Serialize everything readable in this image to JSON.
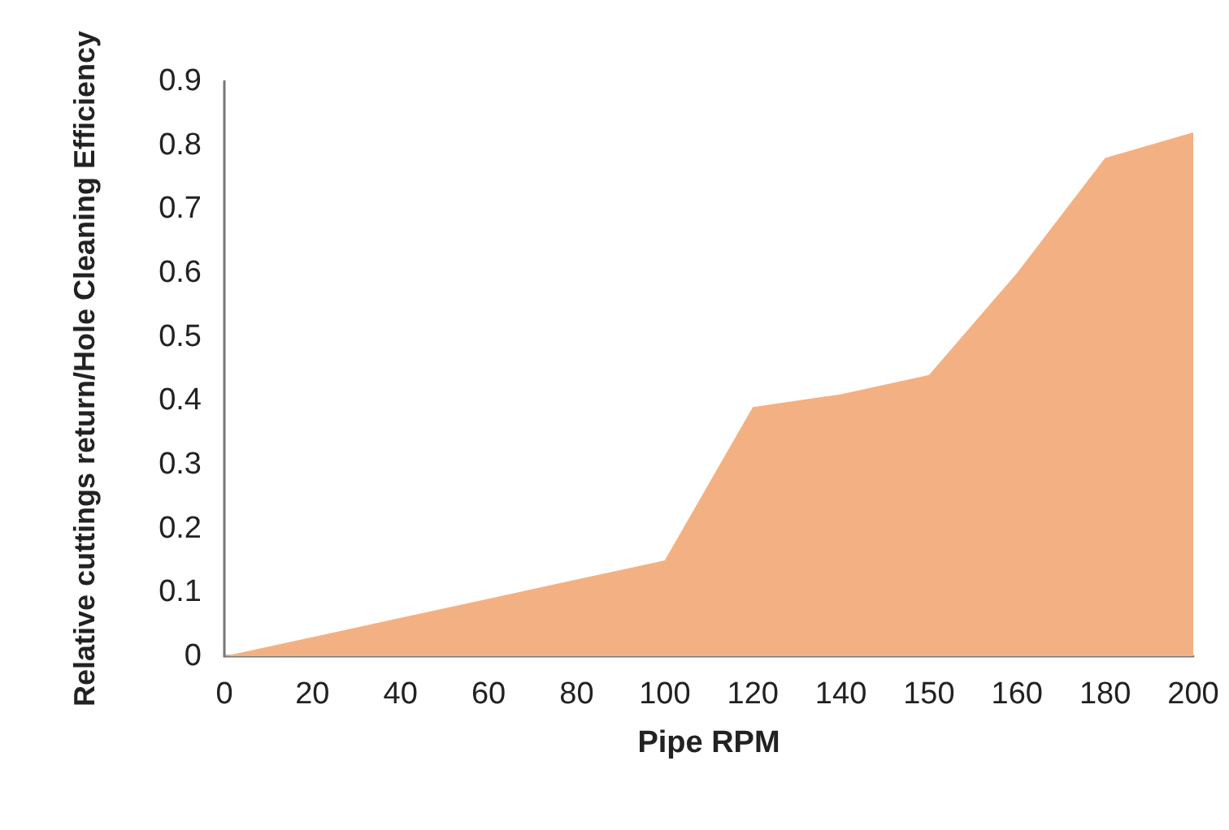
{
  "chart_data": {
    "type": "area",
    "xlabel": "Pipe RPM",
    "ylabel": "Relative cuttings return/Hole Cleaning Efficiency",
    "categories": [
      "0",
      "20",
      "40",
      "60",
      "80",
      "100",
      "120",
      "140",
      "150",
      "160",
      "180",
      "200"
    ],
    "series": [
      {
        "color": "#f3b183",
        "values": [
          0,
          0.03,
          0.06,
          0.09,
          0.12,
          0.15,
          0.39,
          0.41,
          0.44,
          0.6,
          0.78,
          0.82
        ]
      }
    ],
    "ylim": [
      0,
      0.9
    ],
    "yticks": [
      0,
      0.1,
      0.2,
      0.3,
      0.4,
      0.5,
      0.6,
      0.7,
      0.8,
      0.9
    ],
    "grid": false
  }
}
